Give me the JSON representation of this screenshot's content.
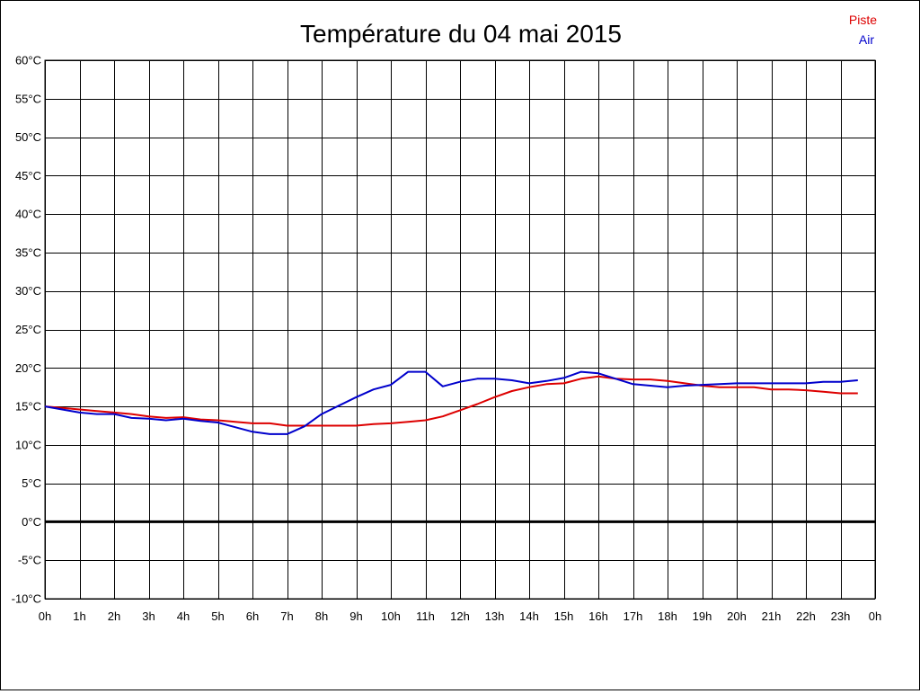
{
  "chart_data": {
    "type": "line",
    "title": "Température du 04 mai 2015",
    "xlabel": "",
    "ylabel": "",
    "x_tick_labels": [
      "0h",
      "1h",
      "2h",
      "3h",
      "4h",
      "5h",
      "6h",
      "7h",
      "8h",
      "9h",
      "10h",
      "11h",
      "12h",
      "13h",
      "14h",
      "15h",
      "16h",
      "17h",
      "18h",
      "19h",
      "20h",
      "21h",
      "22h",
      "23h",
      "0h"
    ],
    "y_tick_labels": [
      "60°C",
      "55°C",
      "50°C",
      "45°C",
      "40°C",
      "35°C",
      "30°C",
      "25°C",
      "20°C",
      "15°C",
      "10°C",
      "5°C",
      "0°C",
      "-5°C",
      "-10°C"
    ],
    "xlim": [
      0,
      24
    ],
    "ylim": [
      -10,
      60
    ],
    "y_step": 5,
    "grid": true,
    "zero_line": 0,
    "legend_position": "top-right",
    "series": [
      {
        "name": "Piste",
        "color": "#dd0000",
        "x": [
          0,
          0.5,
          1,
          1.5,
          2,
          2.5,
          3,
          3.5,
          4,
          4.5,
          5,
          5.5,
          6,
          6.5,
          7,
          7.5,
          8,
          8.5,
          9,
          9.5,
          10,
          10.5,
          11,
          11.5,
          12,
          12.5,
          13,
          13.5,
          14,
          14.5,
          15,
          15.5,
          16,
          16.5,
          17,
          17.5,
          18,
          18.5,
          19,
          19.5,
          20,
          20.5,
          21,
          21.5,
          22,
          22.5,
          23,
          23.5
        ],
        "values": [
          15.0,
          14.8,
          14.6,
          14.4,
          14.2,
          14.0,
          13.7,
          13.5,
          13.6,
          13.3,
          13.2,
          13.0,
          12.8,
          12.8,
          12.5,
          12.5,
          12.5,
          12.5,
          12.5,
          12.7,
          12.8,
          13.0,
          13.2,
          13.7,
          14.5,
          15.3,
          16.2,
          17.0,
          17.5,
          17.9,
          18.0,
          18.6,
          18.9,
          18.6,
          18.5,
          18.5,
          18.3,
          18.0,
          17.7,
          17.5,
          17.5,
          17.5,
          17.2,
          17.2,
          17.1,
          16.9,
          16.7,
          16.7
        ]
      },
      {
        "name": "Air",
        "color": "#0000cc",
        "x": [
          0,
          0.5,
          1,
          1.5,
          2,
          2.5,
          3,
          3.5,
          4,
          4.5,
          5,
          5.5,
          6,
          6.5,
          7,
          7.5,
          8,
          8.5,
          9,
          9.5,
          10,
          10.5,
          11,
          11.5,
          12,
          12.5,
          13,
          13.5,
          14,
          14.5,
          15,
          15.5,
          16,
          16.5,
          17,
          17.5,
          18,
          18.5,
          19,
          19.5,
          20,
          20.5,
          21,
          21.5,
          22,
          22.5,
          23,
          23.5
        ],
        "values": [
          15.0,
          14.6,
          14.2,
          14.0,
          14.0,
          13.5,
          13.4,
          13.2,
          13.4,
          13.1,
          12.9,
          12.3,
          11.7,
          11.4,
          11.4,
          12.4,
          14.0,
          15.1,
          16.2,
          17.2,
          17.8,
          19.5,
          19.5,
          17.6,
          18.2,
          18.6,
          18.6,
          18.4,
          18.0,
          18.3,
          18.7,
          19.5,
          19.3,
          18.6,
          17.9,
          17.7,
          17.5,
          17.7,
          17.8,
          17.9,
          18.0,
          18.0,
          18.0,
          18.0,
          18.0,
          18.2,
          18.2,
          18.4
        ]
      }
    ]
  }
}
